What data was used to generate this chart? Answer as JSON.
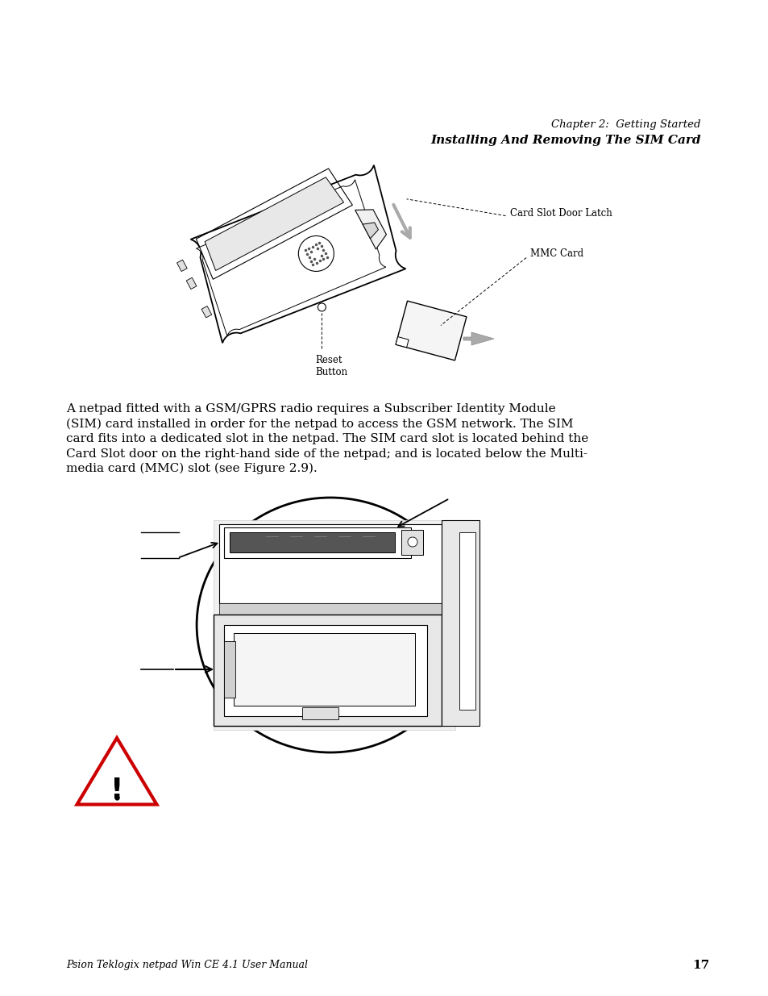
{
  "bg_color": "#ffffff",
  "header_line1": "Chapter 2:  Getting Started",
  "header_line2": "Installing And Removing The SIM Card",
  "body_text_lines": [
    "A netpad fitted with a GSM/GPRS radio requires a Subscriber Identity Module",
    "(SIM) card installed in order for the netpad to access the GSM network. The SIM",
    "card fits into a dedicated slot in the netpad. The SIM card slot is located behind the",
    "Card Slot door on the right-hand side of the netpad; and is located below the Multi-",
    "media card (MMC) slot (see Figure 2.9)."
  ],
  "footer_text": "Psion Teklogix netpad Win CE 4.1 User Manual",
  "footer_page": "17",
  "label_card_slot": "Card Slot Door Latch",
  "label_mmc": "MMC Card",
  "label_reset_line1": "Reset",
  "label_reset_line2": "Button",
  "text_color": "#000000",
  "warn_color": "#cc0000",
  "font_size_body": 11.0,
  "font_size_header1": 9.5,
  "font_size_header2": 11.0,
  "font_size_footer": 9.0,
  "font_size_labels": 8.5
}
